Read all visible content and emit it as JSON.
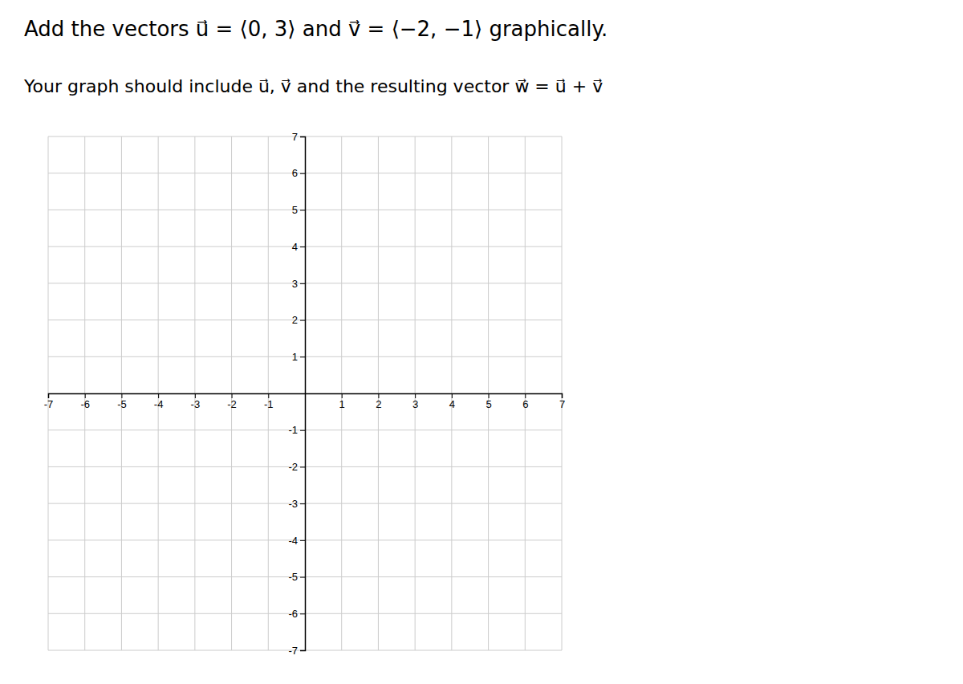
{
  "chart_data": {
    "type": "plane",
    "title": "Add the vectors u⃗ = ⟨0, 3⟩ and v⃗ = ⟨−2, −1⟩ graphically.",
    "subtitle": "Your graph should include u⃗, v⃗ and the resulting vector w⃗ = u⃗ + v⃗",
    "xlim": [
      -7,
      7
    ],
    "ylim": [
      -7,
      7
    ],
    "xticks": [
      -7,
      -6,
      -5,
      -4,
      -3,
      -2,
      -1,
      1,
      2,
      3,
      4,
      5,
      6,
      7
    ],
    "yticks": [
      -7,
      -6,
      -5,
      -4,
      -3,
      -2,
      -1,
      1,
      2,
      3,
      4,
      5,
      6,
      7
    ],
    "grid": true
  }
}
